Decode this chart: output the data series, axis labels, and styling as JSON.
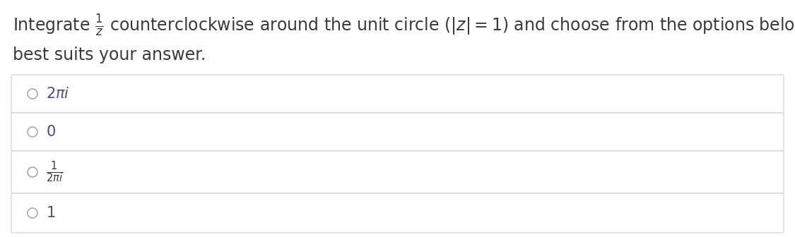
{
  "background_color": "#ffffff",
  "question_line1": "Integrate $\\frac{1}{z}$ counterclockwise around the unit circle $(|z| = 1)$ and choose from the options below that",
  "question_line2": "best suits your answer.",
  "options": [
    {
      "label": "$2\\pi i$",
      "color": "#4a4a8a"
    },
    {
      "label": "$0$",
      "color": "#4a4a8a"
    },
    {
      "label": "$\\frac{1}{2\\pi i}$",
      "color": "#3a3a3a"
    },
    {
      "label": "$1$",
      "color": "#4a4a8a"
    }
  ],
  "text_color": "#3a3a3a",
  "option_box_border": "#d0d0d0",
  "radio_color": "#aaaaaa",
  "font_size_question": 17,
  "font_size_option": 15,
  "fig_width": 11.25,
  "fig_height": 3.36,
  "dpi": 100
}
